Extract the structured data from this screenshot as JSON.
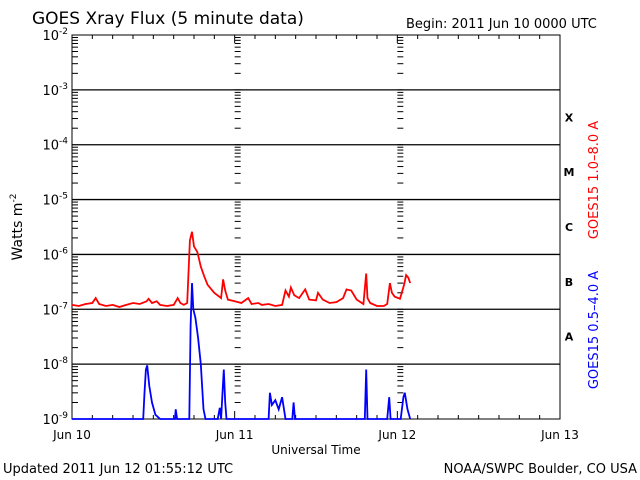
{
  "chart_data": {
    "type": "line",
    "title": "GOES Xray Flux (5 minute data)",
    "begin_label": "Begin:  2011 Jun 10 0000 UTC",
    "xlabel": "Universal Time",
    "ylabel": "Watts m",
    "ylabel_exp": "-2",
    "yscale": "log",
    "ylim": [
      1e-09,
      0.01
    ],
    "xlim_hours": [
      0,
      72
    ],
    "x_ticks": [
      {
        "hour": 0,
        "label": "Jun 10"
      },
      {
        "hour": 24,
        "label": "Jun 11"
      },
      {
        "hour": 48,
        "label": "Jun 12"
      },
      {
        "hour": 72,
        "label": "Jun 13"
      }
    ],
    "y_ticks": [
      {
        "exp": -2,
        "base": "10",
        "sup": "-2"
      },
      {
        "exp": -3,
        "base": "10",
        "sup": "-3"
      },
      {
        "exp": -4,
        "base": "10",
        "sup": "-4"
      },
      {
        "exp": -5,
        "base": "10",
        "sup": "-5"
      },
      {
        "exp": -6,
        "base": "10",
        "sup": "-6"
      },
      {
        "exp": -7,
        "base": "10",
        "sup": "-7"
      },
      {
        "exp": -8,
        "base": "10",
        "sup": "-8"
      },
      {
        "exp": -9,
        "base": "10",
        "sup": "-9"
      }
    ],
    "flare_classes": [
      {
        "label": "X",
        "exp": -3.5
      },
      {
        "label": "M",
        "exp": -4.5
      },
      {
        "label": "C",
        "exp": -5.5
      },
      {
        "label": "B",
        "exp": -6.5
      },
      {
        "label": "A",
        "exp": -7.5
      }
    ],
    "series": [
      {
        "name": "GOES15 1.0-8.0 A",
        "color": "#ff0000",
        "points": [
          [
            0,
            1.2e-07
          ],
          [
            1,
            1.15e-07
          ],
          [
            2,
            1.25e-07
          ],
          [
            3,
            1.3e-07
          ],
          [
            3.5,
            1.6e-07
          ],
          [
            4,
            1.25e-07
          ],
          [
            5,
            1.15e-07
          ],
          [
            6,
            1.2e-07
          ],
          [
            7,
            1.1e-07
          ],
          [
            8,
            1.2e-07
          ],
          [
            9,
            1.3e-07
          ],
          [
            10,
            1.25e-07
          ],
          [
            11,
            1.4e-07
          ],
          [
            11.3,
            1.55e-07
          ],
          [
            11.8,
            1.3e-07
          ],
          [
            12.5,
            1.4e-07
          ],
          [
            13,
            1.2e-07
          ],
          [
            14,
            1.15e-07
          ],
          [
            15,
            1.2e-07
          ],
          [
            15.6,
            1.6e-07
          ],
          [
            16,
            1.3e-07
          ],
          [
            16.5,
            1.2e-07
          ],
          [
            17,
            1.3e-07
          ],
          [
            17.4,
            1.8e-06
          ],
          [
            17.7,
            2.6e-06
          ],
          [
            18,
            1.4e-06
          ],
          [
            18.5,
            1.1e-06
          ],
          [
            19,
            6e-07
          ],
          [
            19.5,
            4e-07
          ],
          [
            20,
            2.8e-07
          ],
          [
            21,
            2e-07
          ],
          [
            22,
            1.6e-07
          ],
          [
            22.3,
            3.5e-07
          ],
          [
            22.6,
            2.2e-07
          ],
          [
            23,
            1.5e-07
          ],
          [
            24,
            1.4e-07
          ],
          [
            25,
            1.3e-07
          ],
          [
            26,
            1.6e-07
          ],
          [
            26.5,
            1.25e-07
          ],
          [
            27.5,
            1.3e-07
          ],
          [
            28,
            1.2e-07
          ],
          [
            29,
            1.25e-07
          ],
          [
            30,
            1.15e-07
          ],
          [
            31,
            1.2e-07
          ],
          [
            31.5,
            2.2e-07
          ],
          [
            32,
            1.7e-07
          ],
          [
            32.3,
            2.5e-07
          ],
          [
            32.8,
            1.8e-07
          ],
          [
            33.5,
            1.6e-07
          ],
          [
            34.4,
            2.3e-07
          ],
          [
            35,
            1.5e-07
          ],
          [
            36,
            1.45e-07
          ],
          [
            36.3,
            2e-07
          ],
          [
            37,
            1.5e-07
          ],
          [
            38,
            1.3e-07
          ],
          [
            39,
            1.35e-07
          ],
          [
            40,
            1.6e-07
          ],
          [
            40.5,
            2.3e-07
          ],
          [
            41.2,
            2.2e-07
          ],
          [
            42,
            1.5e-07
          ],
          [
            43,
            1.25e-07
          ],
          [
            43.4,
            4.5e-07
          ],
          [
            43.6,
            1.6e-07
          ],
          [
            44,
            1.3e-07
          ],
          [
            45,
            1.15e-07
          ],
          [
            46,
            1.15e-07
          ],
          [
            46.5,
            1.25e-07
          ],
          [
            46.9,
            3e-07
          ],
          [
            47.2,
            2e-07
          ],
          [
            47.6,
            1.7e-07
          ],
          [
            48.4,
            1.55e-07
          ],
          [
            49,
            2.8e-07
          ],
          [
            49.3,
            4.2e-07
          ],
          [
            49.6,
            3.8e-07
          ],
          [
            49.9,
            3e-07
          ]
        ]
      },
      {
        "name": "GOES15 0.5-4.0 A",
        "color": "#0000ff",
        "points": [
          [
            0,
            9e-10
          ],
          [
            10.5,
            9e-10
          ],
          [
            10.7,
            3e-09
          ],
          [
            10.9,
            8e-09
          ],
          [
            11.1,
            9.5e-09
          ],
          [
            11.4,
            4e-09
          ],
          [
            11.8,
            2e-09
          ],
          [
            12.3,
            1.2e-09
          ],
          [
            13,
            9e-10
          ],
          [
            15.2,
            9e-10
          ],
          [
            15.3,
            1.5e-09
          ],
          [
            15.5,
            9e-10
          ],
          [
            17.3,
            9e-10
          ],
          [
            17.5,
            5e-08
          ],
          [
            17.7,
            3e-07
          ],
          [
            17.9,
            1e-07
          ],
          [
            18.2,
            7e-08
          ],
          [
            18.6,
            3e-08
          ],
          [
            19,
            1e-08
          ],
          [
            19.4,
            1.5e-09
          ],
          [
            19.7,
            9e-10
          ],
          [
            21.5,
            9e-10
          ],
          [
            21.8,
            1.6e-09
          ],
          [
            22,
            9e-10
          ],
          [
            22.2,
            3e-09
          ],
          [
            22.4,
            8e-09
          ],
          [
            22.6,
            2e-09
          ],
          [
            22.8,
            9e-10
          ],
          [
            29,
            9e-10
          ],
          [
            29.2,
            3e-09
          ],
          [
            29.5,
            1.8e-09
          ],
          [
            30,
            2.2e-09
          ],
          [
            30.5,
            1.5e-09
          ],
          [
            31,
            2.5e-09
          ],
          [
            31.5,
            9e-10
          ],
          [
            32.5,
            9e-10
          ],
          [
            32.7,
            2e-09
          ],
          [
            32.9,
            9e-10
          ],
          [
            43.2,
            9e-10
          ],
          [
            43.4,
            8e-09
          ],
          [
            43.6,
            9e-10
          ],
          [
            46.5,
            9e-10
          ],
          [
            46.8,
            2.5e-09
          ],
          [
            47,
            9e-10
          ],
          [
            48.5,
            9e-10
          ],
          [
            48.9,
            2.5e-09
          ],
          [
            49.1,
            3e-09
          ],
          [
            49.5,
            1.5e-09
          ],
          [
            49.9,
            9e-10
          ]
        ]
      }
    ]
  },
  "footer": {
    "updated": "Updated 2011 Jun 12 01:55:12 UTC",
    "source": "NOAA/SWPC Boulder, CO USA"
  }
}
